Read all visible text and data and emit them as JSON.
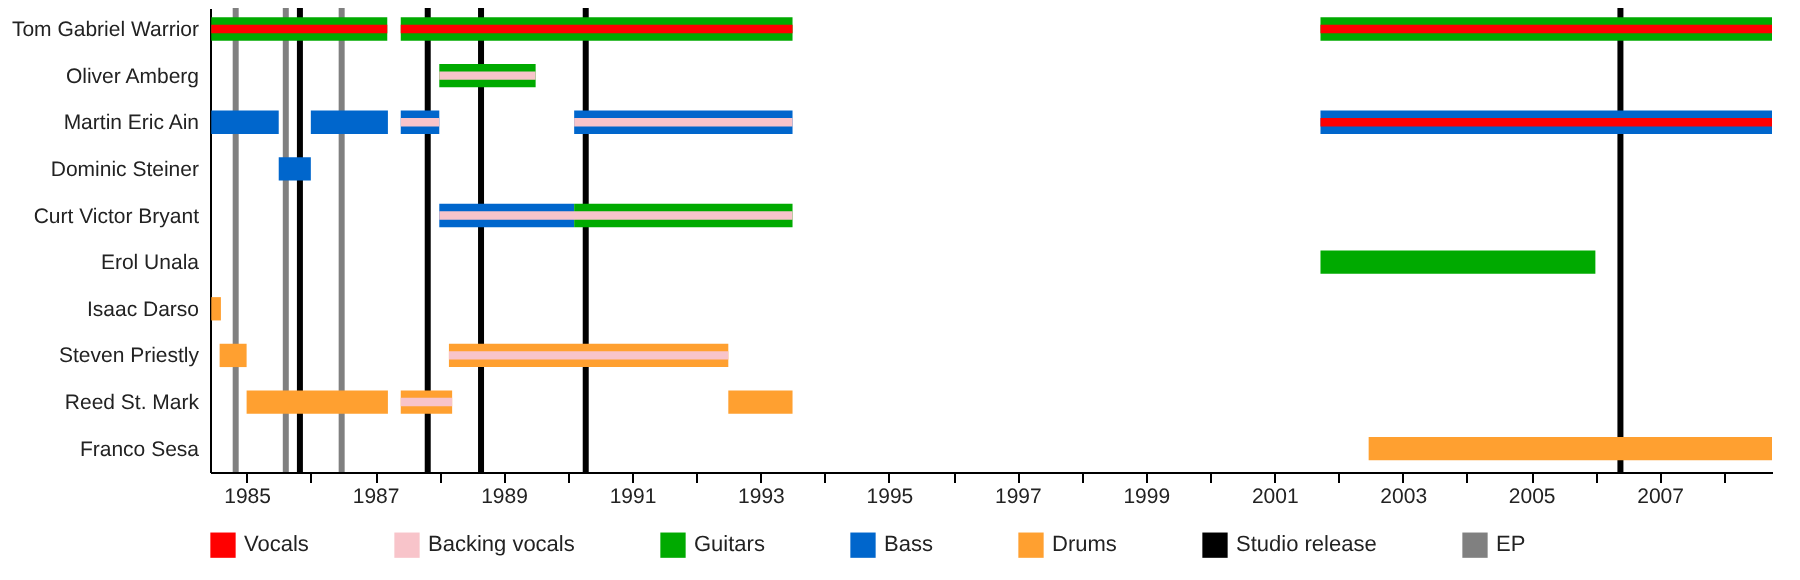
{
  "chart_data": {
    "type": "bar",
    "orientation": "horizontal",
    "legend": "bottom",
    "categories": [
      "Tom Gabriel Warrior",
      "Oliver Amberg",
      "Martin Eric Ain",
      "Dominic Steiner",
      "Curt Victor Bryant",
      "Erol Unala",
      "Isaac Darso",
      "Steven Priestly",
      "Reed St. Mark",
      "Franco Sesa"
    ],
    "series": [
      {
        "name": "Vocals",
        "color": "#ff0000",
        "base": [
          1984.45,
          null,
          2001.72,
          null,
          null,
          null,
          null,
          null,
          null,
          null
        ],
        "values": [
          2.74,
          null,
          7.03,
          null,
          null,
          null,
          null,
          null,
          null,
          null
        ]
      },
      {
        "color": "#ff0000",
        "base": [
          1987.4,
          null,
          null,
          null,
          null,
          null,
          null,
          null,
          null,
          null
        ],
        "values": [
          6.1,
          null,
          null,
          null,
          null,
          null,
          null,
          null,
          null,
          null
        ]
      },
      {
        "color": "#ff0000",
        "base": [
          2001.72,
          null,
          null,
          null,
          null,
          null,
          null,
          null,
          null,
          null
        ],
        "values": [
          7.03,
          null,
          null,
          null,
          null,
          null,
          null,
          null,
          null,
          null
        ]
      },
      {
        "name": "Backing vocals",
        "color": "#f8c4ca",
        "base": [
          null,
          1988.0,
          1987.4,
          null,
          1988.0,
          null,
          null,
          1988.15,
          1987.4,
          null
        ],
        "values": [
          null,
          1.5,
          0.6,
          null,
          5.5,
          null,
          null,
          4.35,
          0.8,
          null
        ]
      },
      {
        "color": "#f8c4ca",
        "base": [
          null,
          null,
          1990.1,
          null,
          null,
          null,
          null,
          null,
          null,
          null
        ],
        "values": [
          null,
          null,
          3.4,
          null,
          null,
          null,
          null,
          null,
          null,
          null
        ]
      },
      {
        "name": "Guitars",
        "color": "#00aa00",
        "base": [
          1984.45,
          1988.0,
          null,
          null,
          1990.1,
          2001.72,
          null,
          null,
          null,
          null
        ],
        "values": [
          2.74,
          1.5,
          null,
          null,
          3.4,
          4.28,
          null,
          null,
          null,
          null
        ]
      },
      {
        "color": "#00aa00",
        "base": [
          1987.4,
          null,
          null,
          null,
          null,
          null,
          null,
          null,
          null,
          null
        ],
        "values": [
          6.1,
          null,
          null,
          null,
          null,
          null,
          null,
          null,
          null,
          null
        ]
      },
      {
        "color": "#00aa00",
        "base": [
          2001.72,
          null,
          null,
          null,
          null,
          null,
          null,
          null,
          null,
          null
        ],
        "values": [
          7.03,
          null,
          null,
          null,
          null,
          null,
          null,
          null,
          null,
          null
        ]
      },
      {
        "name": "Bass",
        "color": "#0066cc",
        "base": [
          null,
          null,
          1984.45,
          1985.5,
          1988.0,
          null,
          null,
          null,
          null,
          null
        ],
        "values": [
          null,
          null,
          1.05,
          0.5,
          2.1,
          null,
          null,
          null,
          null,
          null
        ]
      },
      {
        "color": "#0066cc",
        "base": [
          null,
          null,
          1986.0,
          null,
          null,
          null,
          null,
          null,
          null,
          null
        ],
        "values": [
          null,
          null,
          1.2,
          null,
          null,
          null,
          null,
          null,
          null,
          null
        ]
      },
      {
        "color": "#0066cc",
        "base": [
          null,
          null,
          1987.4,
          null,
          null,
          null,
          null,
          null,
          null,
          null
        ],
        "values": [
          null,
          null,
          0.6,
          null,
          null,
          null,
          null,
          null,
          null,
          null
        ]
      },
      {
        "color": "#0066cc",
        "base": [
          null,
          null,
          1990.1,
          null,
          null,
          null,
          null,
          null,
          null,
          null
        ],
        "values": [
          null,
          null,
          3.4,
          null,
          null,
          null,
          null,
          null,
          null,
          null
        ]
      },
      {
        "color": "#0066cc",
        "base": [
          null,
          null,
          2001.72,
          null,
          null,
          null,
          null,
          null,
          null,
          null
        ],
        "values": [
          null,
          null,
          7.03,
          null,
          null,
          null,
          null,
          null,
          null,
          null
        ]
      },
      {
        "name": "Drums",
        "color": "#ffa030",
        "base": [
          null,
          null,
          null,
          null,
          null,
          null,
          1984.45,
          1984.58,
          1985.0,
          2002.47
        ],
        "values": [
          null,
          null,
          null,
          null,
          null,
          null,
          0.15,
          0.42,
          2.2,
          6.28
        ]
      },
      {
        "color": "#ffa030",
        "base": [
          null,
          null,
          null,
          null,
          null,
          null,
          null,
          1988.15,
          1987.4,
          null
        ],
        "values": [
          null,
          null,
          null,
          null,
          null,
          null,
          null,
          4.35,
          0.8,
          null
        ]
      },
      {
        "color": "#ffa030",
        "base": [
          null,
          null,
          null,
          null,
          null,
          null,
          null,
          null,
          1992.5,
          null
        ],
        "values": [
          null,
          null,
          null,
          null,
          null,
          null,
          null,
          null,
          1.0,
          null
        ]
      }
    ],
    "ref_lines": [
      {
        "axis": "x",
        "value": 1985.83,
        "label": "Studio release",
        "color": "#000000"
      },
      {
        "axis": "x",
        "value": 1987.82,
        "color": "#000000"
      },
      {
        "axis": "x",
        "value": 1988.65,
        "color": "#000000"
      },
      {
        "axis": "x",
        "value": 1990.28,
        "color": "#000000"
      },
      {
        "axis": "x",
        "value": 2006.39,
        "color": "#000000"
      },
      {
        "axis": "x",
        "value": 1984.83,
        "label": "EP",
        "color": "#808080"
      },
      {
        "axis": "x",
        "value": 1985.61,
        "color": "#808080"
      },
      {
        "axis": "x",
        "value": 1986.48,
        "color": "#808080"
      }
    ],
    "xlim": [
      1984.43,
      2008.75
    ],
    "xticks": [
      1985,
      {
        "value": 1986,
        "label": null
      },
      1987,
      {
        "value": 1988,
        "label": null
      },
      1989,
      {
        "value": 1990,
        "label": null
      },
      1991,
      {
        "value": 1992,
        "label": null
      },
      1993,
      {
        "value": 1994,
        "label": null
      },
      1995,
      {
        "value": 1996,
        "label": null
      },
      1997,
      {
        "value": 1998,
        "label": null
      },
      1999,
      {
        "value": 2000,
        "label": null
      },
      2001,
      {
        "value": 2002,
        "label": null
      },
      2003,
      {
        "value": 2004,
        "label": null
      },
      2005,
      {
        "value": 2006,
        "label": null
      },
      2007,
      {
        "value": 2008,
        "label": null
      }
    ]
  }
}
